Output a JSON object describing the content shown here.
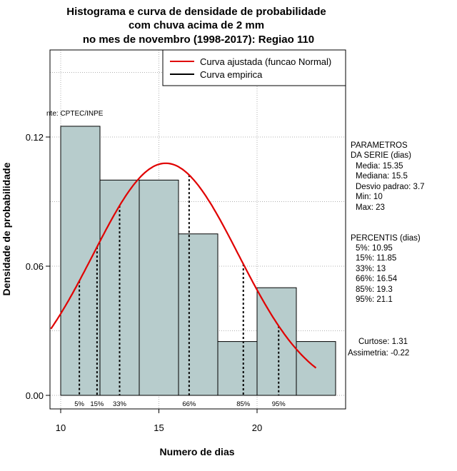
{
  "chart_data": {
    "type": "histogram",
    "title_lines": [
      "Histograma e curva de densidade de probabilidade",
      "com chuva acima de 2 mm",
      "no mes de novembro (1998-2017): Regiao 110"
    ],
    "xlabel": "Numero de dias",
    "ylabel": "Densidade de probabilidade",
    "xlim": [
      9.5,
      24.5
    ],
    "ylim": [
      0,
      0.155
    ],
    "xticks": [
      10,
      15,
      20
    ],
    "yticks": [
      0.0,
      0.06,
      0.12
    ],
    "ytick_labels": [
      "0.00",
      "0.06",
      "0.12"
    ],
    "bins": [
      {
        "start": 10,
        "end": 12,
        "density": 0.125
      },
      {
        "start": 12,
        "end": 14,
        "density": 0.1
      },
      {
        "start": 14,
        "end": 16,
        "density": 0.1
      },
      {
        "start": 16,
        "end": 18,
        "density": 0.075
      },
      {
        "start": 18,
        "end": 20,
        "density": 0.025
      },
      {
        "start": 20,
        "end": 22,
        "density": 0.05
      },
      {
        "start": 22,
        "end": 24,
        "density": 0.025
      }
    ],
    "bar_color": "#b7cccc",
    "normal_curve": {
      "mean": 15.35,
      "sd": 3.7,
      "x_from": 9.5,
      "x_to": 23,
      "color": "#e00000"
    },
    "percentile_lines": [
      {
        "label": "5%",
        "x": 10.95
      },
      {
        "label": "15%",
        "x": 11.85
      },
      {
        "label": "33%",
        "x": 13
      },
      {
        "label": "66%",
        "x": 16.54
      },
      {
        "label": "85%",
        "x": 19.3
      },
      {
        "label": "95%",
        "x": 21.1
      }
    ],
    "legend": [
      {
        "label": "Curva ajustada (funcao Normal)",
        "color": "#e00000"
      },
      {
        "label": "Curva empirica",
        "color": "#000000"
      }
    ],
    "source_text": "nte: CPTEC/INPE",
    "grid": true
  },
  "side_panel": {
    "params_title": [
      "PARAMETROS",
      "DA SERIE (dias)"
    ],
    "params": [
      "Media: 15.35",
      "Mediana: 15.5",
      "Desvio padrao: 3.7",
      "Min: 10",
      "Max: 23"
    ],
    "pct_title": "PERCENTIS (dias)",
    "percentis": [
      "5%: 10.95",
      "15%: 11.85",
      "33%: 13",
      "66%: 16.54",
      "85%: 19.3",
      "95%: 21.1"
    ],
    "curtose": "Curtose: 1.31",
    "assimetria": "Assimetria: -0.22"
  }
}
